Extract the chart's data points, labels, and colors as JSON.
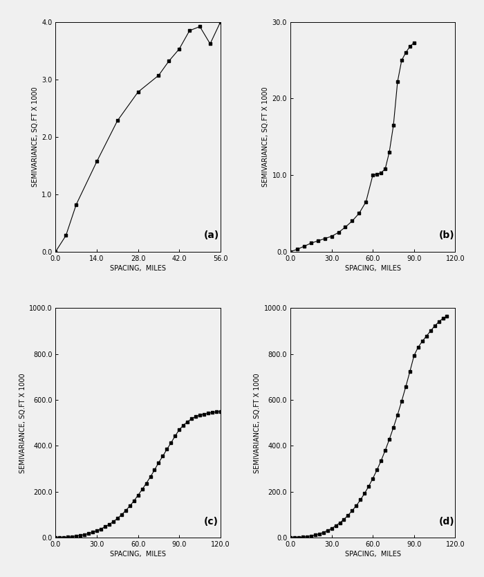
{
  "subplot_a": {
    "x": [
      0,
      3.5,
      7,
      14,
      21,
      28,
      35,
      38.5,
      42,
      45.5,
      49,
      52.5,
      56
    ],
    "y": [
      0,
      0.28,
      0.82,
      1.57,
      2.28,
      2.78,
      3.07,
      3.32,
      3.53,
      3.85,
      3.92,
      3.62,
      4.0
    ],
    "xlim": [
      0,
      56
    ],
    "ylim": [
      0,
      4.0
    ],
    "xticks": [
      0.0,
      14.0,
      28.0,
      42.0,
      56.0
    ],
    "yticks": [
      0.0,
      1.0,
      2.0,
      3.0,
      4.0
    ],
    "xlabel": "SPACING,  MILES",
    "ylabel": "SEMIVARIANCE, SQ.FT X 1000",
    "label": "(a)"
  },
  "subplot_b": {
    "x": [
      0,
      5,
      10,
      15,
      20,
      25,
      30,
      35,
      40,
      45,
      50,
      55,
      60,
      63,
      66,
      69,
      72,
      75,
      78,
      81,
      84,
      87,
      90
    ],
    "y": [
      0,
      0.3,
      0.7,
      1.1,
      1.4,
      1.7,
      2.0,
      2.5,
      3.2,
      4.0,
      5.0,
      6.5,
      10.0,
      10.1,
      10.3,
      10.8,
      13.0,
      16.5,
      22.2,
      25.0,
      26.0,
      26.8,
      27.3
    ],
    "xlim": [
      0,
      120
    ],
    "ylim": [
      0,
      30
    ],
    "xticks": [
      0.0,
      30.0,
      60.0,
      90.0,
      120.0
    ],
    "yticks": [
      0.0,
      10.0,
      20.0,
      30.0
    ],
    "xlabel": "SPACING,  MILES",
    "ylabel": "SEMIVARIANCE, SQ.FT X 1000",
    "label": "(b)"
  },
  "subplot_c": {
    "x": [
      0,
      3,
      6,
      9,
      12,
      15,
      18,
      21,
      24,
      27,
      30,
      33,
      36,
      39,
      42,
      45,
      48,
      51,
      54,
      57,
      60,
      63,
      66,
      69,
      72,
      75,
      78,
      81,
      84,
      87,
      90,
      93,
      96,
      99,
      102,
      105,
      108,
      111,
      114,
      117,
      120
    ],
    "y": [
      0,
      0.4,
      1.2,
      2.5,
      4.5,
      7,
      10,
      14,
      18,
      24,
      30,
      38,
      48,
      58,
      70,
      84,
      100,
      118,
      138,
      160,
      185,
      210,
      237,
      265,
      295,
      327,
      355,
      385,
      413,
      443,
      470,
      490,
      505,
      518,
      528,
      534,
      538,
      542,
      545,
      548,
      550
    ],
    "xlim": [
      0,
      120
    ],
    "ylim": [
      0,
      1000
    ],
    "xticks": [
      0.0,
      30.0,
      60.0,
      90.0,
      120.0
    ],
    "yticks": [
      0.0,
      200.0,
      400.0,
      600.0,
      800.0,
      1000.0
    ],
    "xlabel": "SPACING,  MILES",
    "ylabel": "SEMIVARIANCE, SQ.FT X 1000",
    "label": "(c)"
  },
  "subplot_d": {
    "x": [
      0,
      3,
      6,
      9,
      12,
      15,
      18,
      21,
      24,
      27,
      30,
      33,
      36,
      39,
      42,
      45,
      48,
      51,
      54,
      57,
      60,
      63,
      66,
      69,
      72,
      75,
      78,
      81,
      84,
      87,
      90,
      93,
      96,
      99,
      102,
      105,
      108,
      111,
      114
    ],
    "y": [
      0,
      0.5,
      1.5,
      3,
      5,
      8,
      12,
      17,
      23,
      31,
      40,
      52,
      65,
      80,
      98,
      118,
      140,
      165,
      193,
      224,
      258,
      295,
      335,
      380,
      428,
      480,
      535,
      595,
      658,
      724,
      793,
      830,
      855,
      878,
      900,
      922,
      940,
      955,
      965
    ],
    "xlim": [
      0,
      120
    ],
    "ylim": [
      0,
      1000
    ],
    "xticks": [
      0.0,
      30.0,
      60.0,
      90.0,
      120.0
    ],
    "yticks": [
      0.0,
      200.0,
      400.0,
      600.0,
      800.0,
      1000.0
    ],
    "xlabel": "SPACING,  MILES",
    "ylabel": "SEMIVARIANCE, SQ.FT X 1000",
    "label": "(d)"
  },
  "background_color": "#f0f0f0",
  "line_color": "#000000",
  "marker": "s",
  "markersize": 2.5,
  "linewidth": 0.8,
  "fontsize_label": 7,
  "fontsize_tick": 7,
  "fontsize_sublabel": 10
}
